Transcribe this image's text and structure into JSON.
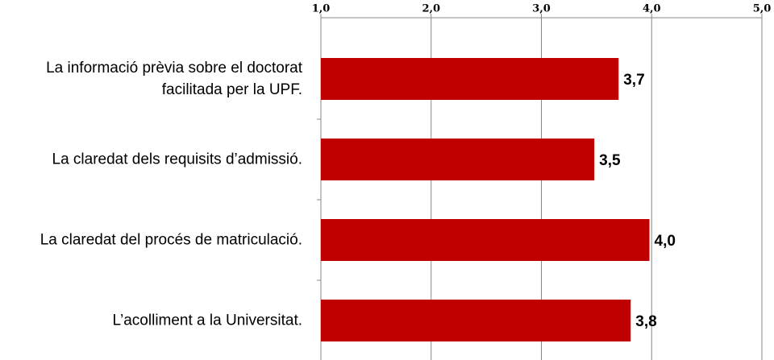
{
  "chart_data": {
    "type": "barh",
    "categories": [
      "La informació prèvia sobre el doctorat facilitada per la UPF.",
      "La claredat dels requisits d’admissió.",
      "La claredat del procés de matriculació.",
      "L’acolliment a la Universitat."
    ],
    "values": [
      3.7,
      3.48,
      3.98,
      3.81
    ],
    "value_labels": [
      "3,7",
      "3,5",
      "4,0",
      "3,8"
    ],
    "color": "#c00000",
    "xlim": [
      1,
      5
    ],
    "xticks": [
      {
        "value": 1,
        "label": "1,0"
      },
      {
        "value": 2,
        "label": "2,0"
      },
      {
        "value": 3,
        "label": "3,0"
      },
      {
        "value": 4,
        "label": "4,0"
      },
      {
        "value": 5,
        "label": "5,0"
      }
    ],
    "grid": true
  }
}
